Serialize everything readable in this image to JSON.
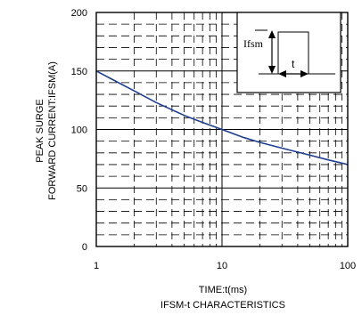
{
  "chart_data": {
    "type": "line",
    "title": "IFSM-t CHARACTERISTICS",
    "xlabel": "TIME:t(ms)",
    "ylabel_lines": [
      "PEAK SURGE",
      "FORWARD CURRENT:IFSM(A)"
    ],
    "x_scale": "log",
    "xlim": [
      1,
      100
    ],
    "ylim": [
      0,
      200
    ],
    "x_ticks": [
      {
        "value": 1,
        "label": "1"
      },
      {
        "value": 10,
        "label": "10"
      },
      {
        "value": 100,
        "label": "100"
      }
    ],
    "y_ticks": [
      {
        "value": 0,
        "label": "0"
      },
      {
        "value": 50,
        "label": "50"
      },
      {
        "value": 100,
        "label": "100"
      },
      {
        "value": 150,
        "label": "150"
      },
      {
        "value": 200,
        "label": "200"
      }
    ],
    "grid": true,
    "series": [
      {
        "x": [
          1,
          2,
          3,
          5,
          7,
          10,
          15,
          20,
          30,
          50,
          70,
          100
        ],
        "values": [
          150,
          133,
          123,
          112,
          106,
          100,
          93,
          89,
          84,
          78,
          74,
          70
        ]
      }
    ],
    "inset": {
      "label_current": "Ifsm",
      "label_time": "t"
    }
  }
}
